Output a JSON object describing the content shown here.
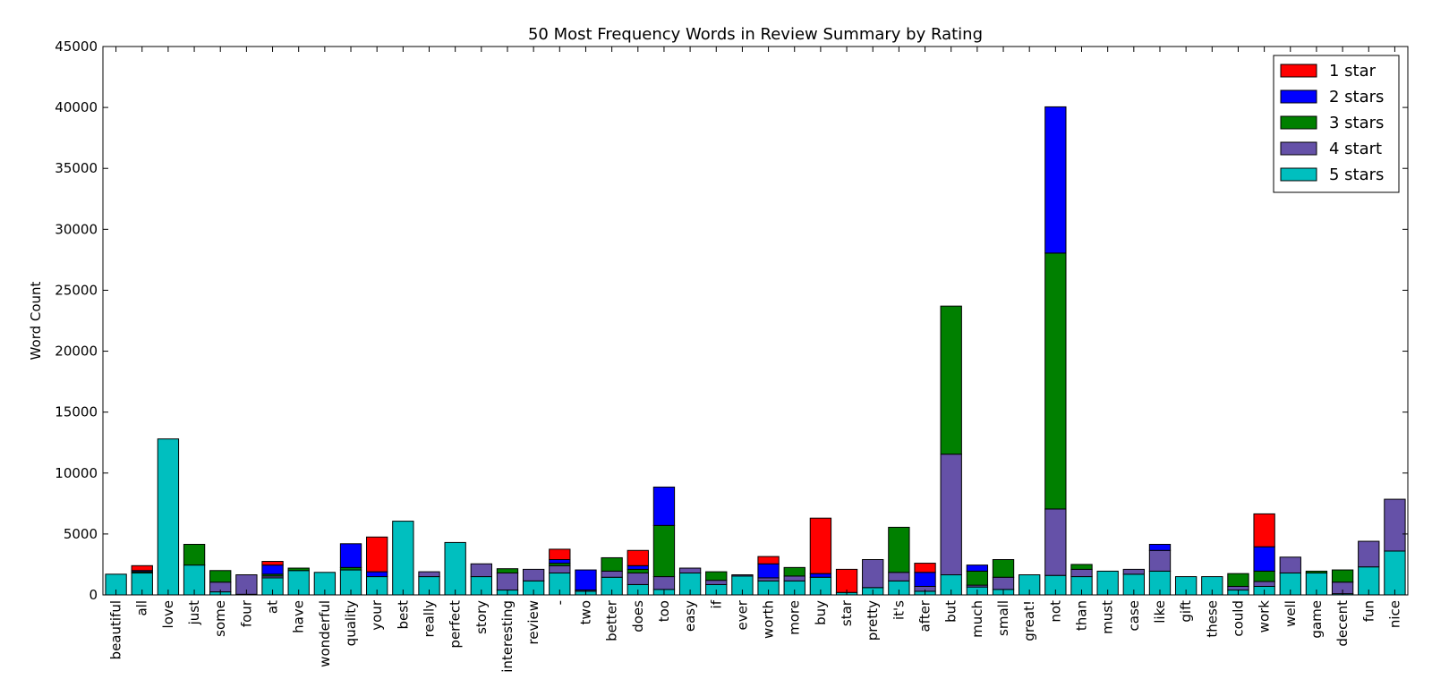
{
  "chart_data": {
    "type": "bar",
    "stacked": true,
    "title": "50 Most Frequency Words in Review Summary by Rating",
    "xlabel": "",
    "ylabel": "Word Count",
    "ylim": [
      0,
      45000
    ],
    "yticks": [
      0,
      5000,
      10000,
      15000,
      20000,
      25000,
      30000,
      35000,
      40000,
      45000
    ],
    "legend_position": "top-right",
    "grid": false,
    "categories": [
      "beautiful",
      "all",
      "love",
      "just",
      "some",
      "four",
      "at",
      "have",
      "wonderful",
      "quality",
      "your",
      "best",
      "really",
      "perfect",
      "story",
      "interesting",
      "review",
      "-",
      "two",
      "better",
      "does",
      "too",
      "easy",
      "if",
      "ever",
      "worth",
      "more",
      "buy",
      "star",
      "pretty",
      "it's",
      "after",
      "but",
      "much",
      "small",
      "great!",
      "not",
      "than",
      "must",
      "case",
      "like",
      "gift",
      "these",
      "could",
      "work",
      "well",
      "game",
      "decent",
      "fun",
      "nice"
    ],
    "series": [
      {
        "name": "5 stars",
        "color": "#00bfbf",
        "values": [
          1700,
          1800,
          12800,
          2450,
          250,
          50,
          1400,
          2000,
          1850,
          2050,
          1500,
          6050,
          1500,
          4300,
          1500,
          400,
          1150,
          1800,
          300,
          1450,
          850,
          450,
          1800,
          850,
          1550,
          1150,
          1150,
          1450,
          200,
          600,
          1150,
          300,
          1650,
          650,
          450,
          1650,
          1600,
          1500,
          1950,
          1700,
          1950,
          1500,
          1500,
          400,
          700,
          1800,
          1800,
          100,
          2300,
          3600
        ]
      },
      {
        "name": "4 start",
        "color": "#6551a8",
        "values": [
          0,
          0,
          0,
          0,
          800,
          1600,
          150,
          0,
          0,
          0,
          0,
          0,
          400,
          0,
          1050,
          1400,
          950,
          600,
          100,
          500,
          950,
          1050,
          400,
          350,
          100,
          250,
          400,
          0,
          0,
          2300,
          700,
          400,
          9900,
          150,
          1000,
          0,
          5450,
          600,
          0,
          400,
          1700,
          0,
          0,
          300,
          400,
          1300,
          0,
          950,
          2100,
          4250
        ]
      },
      {
        "name": "3 stars",
        "color": "#008000",
        "values": [
          0,
          100,
          0,
          1700,
          950,
          0,
          150,
          200,
          0,
          200,
          0,
          0,
          0,
          0,
          0,
          350,
          0,
          200,
          0,
          1100,
          300,
          4200,
          0,
          700,
          0,
          0,
          700,
          0,
          0,
          0,
          3700,
          0,
          12150,
          1150,
          1450,
          0,
          21000,
          400,
          0,
          0,
          0,
          0,
          0,
          1050,
          850,
          0,
          150,
          1000,
          0,
          0
        ]
      },
      {
        "name": "2 stars",
        "color": "#0000ff",
        "values": [
          0,
          100,
          0,
          0,
          0,
          0,
          750,
          0,
          0,
          1950,
          400,
          0,
          0,
          0,
          0,
          0,
          0,
          300,
          1650,
          0,
          300,
          3150,
          0,
          0,
          0,
          1150,
          0,
          300,
          0,
          0,
          0,
          1150,
          0,
          500,
          0,
          0,
          12000,
          0,
          0,
          0,
          500,
          0,
          0,
          0,
          2000,
          0,
          0,
          0,
          0,
          0
        ]
      },
      {
        "name": "1 star",
        "color": "#ff0000",
        "values": [
          0,
          400,
          0,
          0,
          0,
          0,
          300,
          0,
          0,
          0,
          2850,
          0,
          0,
          0,
          0,
          0,
          0,
          850,
          0,
          0,
          1250,
          0,
          0,
          0,
          0,
          600,
          0,
          4550,
          1900,
          0,
          0,
          750,
          0,
          0,
          0,
          0,
          0,
          0,
          0,
          0,
          0,
          0,
          0,
          0,
          2700,
          0,
          0,
          0,
          0,
          0
        ]
      }
    ]
  }
}
